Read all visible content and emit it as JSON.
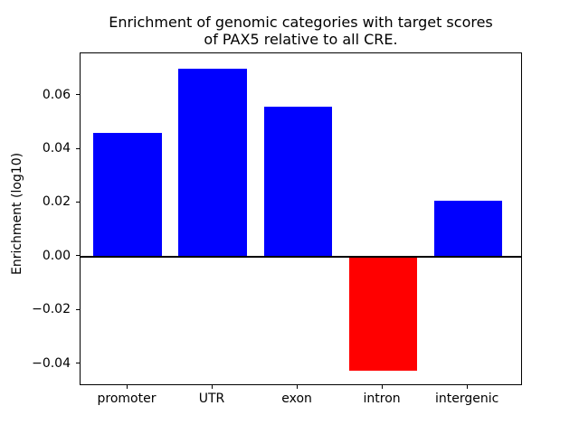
{
  "figure": {
    "background": "#ffffff",
    "text_color": "#000000"
  },
  "chart_data": {
    "type": "bar",
    "title": "Enrichment of genomic categories with target scores\nof PAX5 relative to all CRE.",
    "title_lines": [
      "Enrichment of genomic categories with target scores",
      "of PAX5 relative to all CRE."
    ],
    "ylabel": "Enrichment (log10)",
    "xlabel": "",
    "categories": [
      "promoter",
      "UTR",
      "exon",
      "intron",
      "intergenic"
    ],
    "values": [
      0.0462,
      0.0701,
      0.056,
      -0.0426,
      0.0207
    ],
    "bar_colors": [
      "#0000ff",
      "#0000ff",
      "#0000ff",
      "#ff0000",
      "#0000ff"
    ],
    "positive_color": "#0000ff",
    "negative_color": "#ff0000",
    "baseline_value": 0,
    "baseline_color": "#000000",
    "ylim": [
      -0.0482,
      0.0757
    ],
    "xlim": [
      -0.553,
      4.647
    ],
    "yticks": [
      {
        "value": 0.06,
        "label": "0.06"
      },
      {
        "value": 0.04,
        "label": "0.04"
      },
      {
        "value": 0.02,
        "label": "0.02"
      },
      {
        "value": 0.0,
        "label": "0.00"
      },
      {
        "value": -0.02,
        "label": "−0.02"
      },
      {
        "value": -0.04,
        "label": "−0.04"
      }
    ],
    "bar_width_fraction": 0.8,
    "grid": false,
    "legend": false
  }
}
